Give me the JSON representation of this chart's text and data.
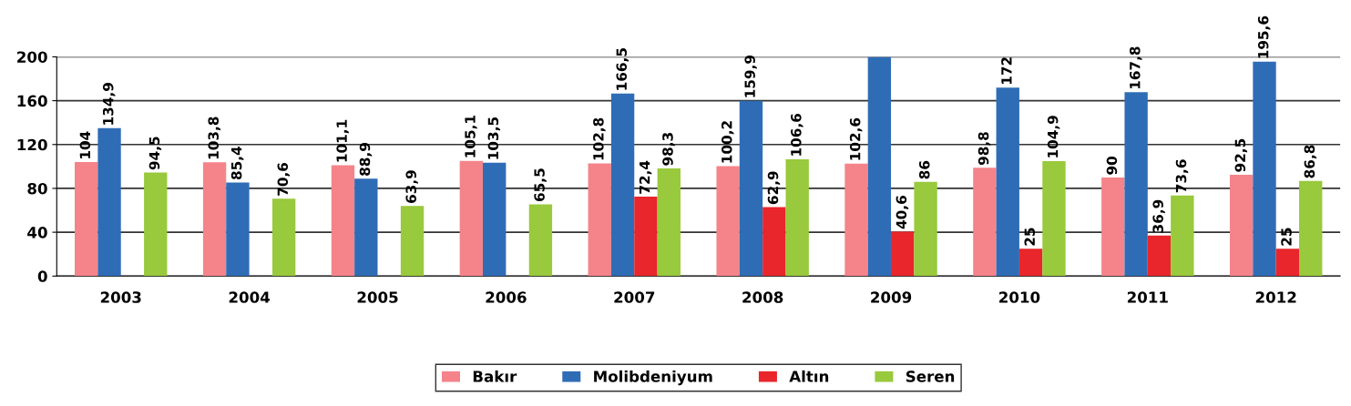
{
  "chart_data": {
    "type": "bar",
    "categories": [
      "2003",
      "2004",
      "2005",
      "2006",
      "2007",
      "2008",
      "2009",
      "2010",
      "2011",
      "2012"
    ],
    "series": [
      {
        "name": "Bakır",
        "color": "#f4848a",
        "values": [
          104,
          103.8,
          101.1,
          105.1,
          102.8,
          100.2,
          102.6,
          98.8,
          90,
          92.5
        ],
        "value_labels": [
          "104",
          "103,8",
          "101,1",
          "105,1",
          "102,8",
          "100,2",
          "102,6",
          "98,8",
          "90",
          "92,5"
        ]
      },
      {
        "name": "Molibdeniyum",
        "color": "#2f6cb6",
        "values": [
          134.9,
          85.4,
          88.9,
          103.5,
          166.5,
          159.9,
          200,
          172,
          167.8,
          195.6
        ],
        "value_labels": [
          "134,9",
          "85,4",
          "88,9",
          "103,5",
          "166,5",
          "159,9",
          null,
          "172",
          "167,8",
          "195,6"
        ]
      },
      {
        "name": "Altın",
        "color": "#e8262b",
        "values": [
          null,
          null,
          null,
          null,
          72.4,
          62.9,
          40.6,
          25,
          36.9,
          25
        ],
        "value_labels": [
          null,
          null,
          null,
          null,
          "72,4",
          "62,9",
          "40,6",
          "25",
          "36,9",
          "25"
        ]
      },
      {
        "name": "Seren",
        "color": "#99c93c",
        "values": [
          94.5,
          70.6,
          63.9,
          65.5,
          98.3,
          106.6,
          86,
          104.9,
          73.6,
          86.8
        ],
        "value_labels": [
          "94,5",
          "70,6",
          "63,9",
          "65,5",
          "98,3",
          "106,6",
          "86",
          "104,9",
          "73,6",
          "86,8"
        ]
      }
    ],
    "ylim": [
      0,
      200
    ],
    "yticks": [
      0,
      40,
      80,
      120,
      160,
      200
    ],
    "grid": "y",
    "legend": "bottom"
  }
}
